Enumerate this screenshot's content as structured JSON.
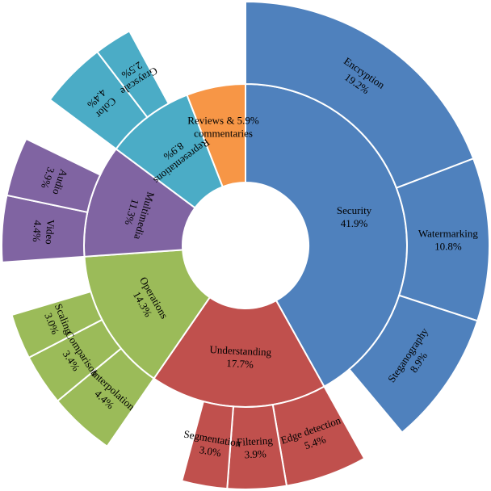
{
  "chart_data": {
    "type": "sunburst",
    "title": "",
    "inner": [
      {
        "name": "Security",
        "value_label": "41.9%",
        "value": 41.9,
        "color": "#4F81BD"
      },
      {
        "name": "Understanding",
        "value_label": "17.7%",
        "value": 17.7,
        "color": "#C0504D"
      },
      {
        "name": "Operations",
        "value_label": "14.3%",
        "value": 14.3,
        "color": "#9BBB59"
      },
      {
        "name": "Multimedia",
        "value_label": "11.3%",
        "value": 11.3,
        "color": "#8064A2"
      },
      {
        "name": "Representations",
        "value_label": "8.9%",
        "value": 8.9,
        "color": "#4BACC6"
      },
      {
        "name": "Reviews & commentaries",
        "value_label": "5.9%",
        "value": 5.9,
        "color": "#F79646"
      }
    ],
    "outer": [
      {
        "parent": "Security",
        "name": "Encryption",
        "value_label": "19.2%",
        "value": 19.2
      },
      {
        "parent": "Security",
        "name": "Watermarking",
        "value_label": "10.8%",
        "value": 10.8
      },
      {
        "parent": "Security",
        "name": "Steganography",
        "value_label": "8.9%",
        "value": 8.9
      },
      {
        "parent": "Understanding",
        "name": "Edge detection",
        "value_label": "5.4%",
        "value": 5.4
      },
      {
        "parent": "Understanding",
        "name": "Filtering",
        "value_label": "3.9%",
        "value": 3.9
      },
      {
        "parent": "Understanding",
        "name": "Segmentation",
        "value_label": "3.0%",
        "value": 3.0
      },
      {
        "parent": "Operations",
        "name": "Interpolation",
        "value_label": "4.4%",
        "value": 4.4
      },
      {
        "parent": "Operations",
        "name": "Comparison",
        "value_label": "3.4%",
        "value": 3.4
      },
      {
        "parent": "Operations",
        "name": "Scaling",
        "value_label": "3.0%",
        "value": 3.0
      },
      {
        "parent": "Multimedia",
        "name": "Video",
        "value_label": "4.4%",
        "value": 4.4
      },
      {
        "parent": "Multimedia",
        "name": "Audio",
        "value_label": "3.9%",
        "value": 3.9
      },
      {
        "parent": "Representations",
        "name": "Color",
        "value_label": "4.4%",
        "value": 4.4
      },
      {
        "parent": "Representations",
        "name": "Grayscale",
        "value_label": "2.5%",
        "value": 2.5
      }
    ]
  }
}
